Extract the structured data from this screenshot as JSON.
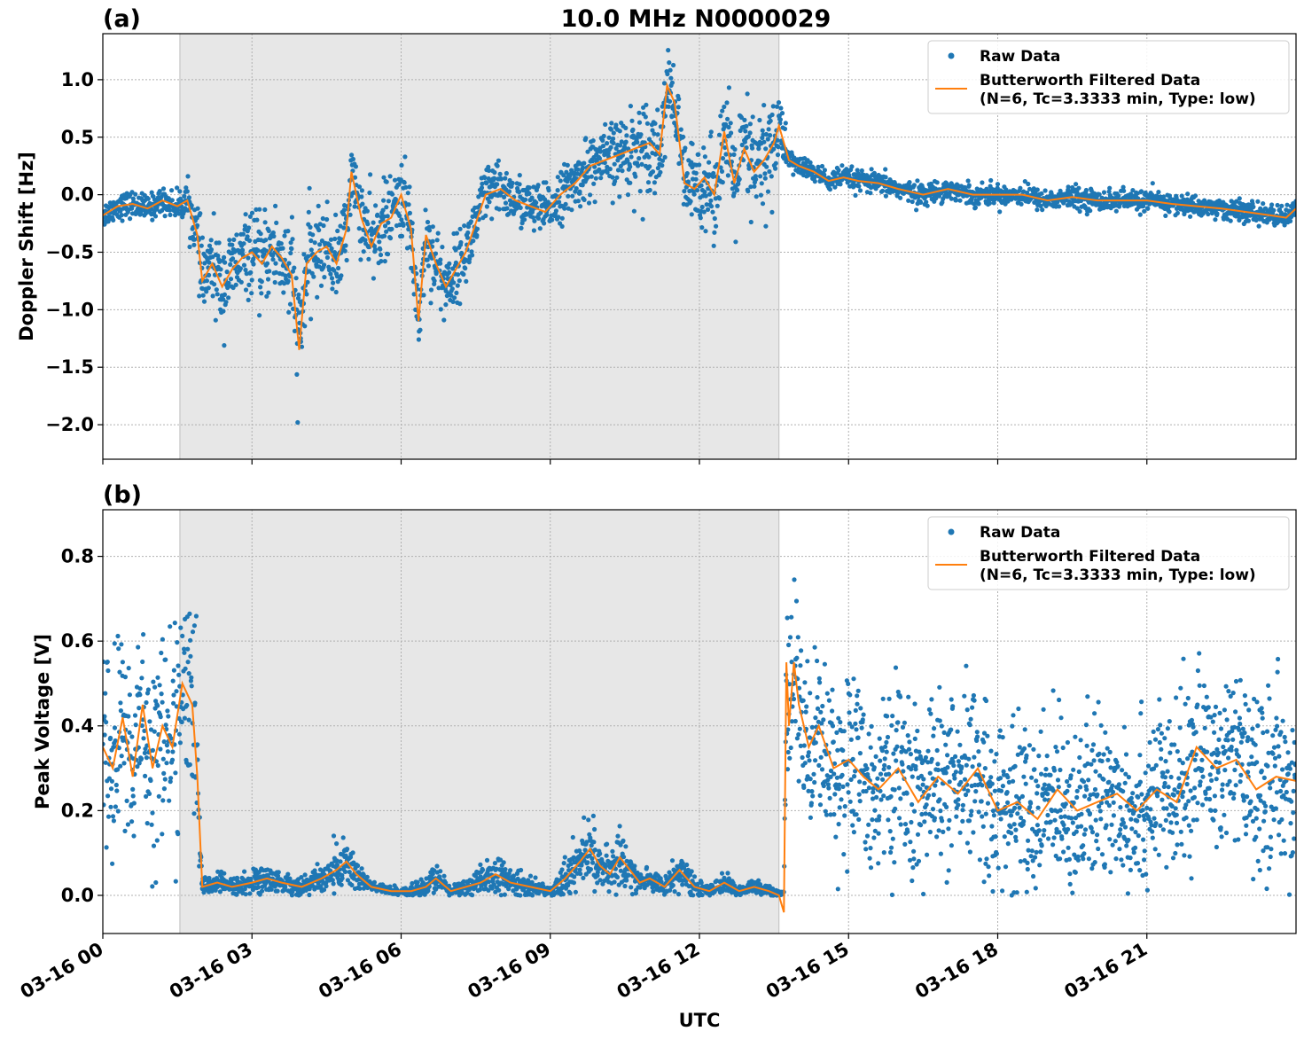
{
  "figure": {
    "title": "10.0 MHz N0000029",
    "xlabel": "UTC"
  },
  "chart_data": [
    {
      "type": "scatter",
      "panel_label": "(a)",
      "ylabel": "Doppler Shift [Hz]",
      "xlim_hours": [
        0,
        24
      ],
      "ylim": [
        -2.3,
        1.4
      ],
      "yticks": [
        1.0,
        0.5,
        0.0,
        -0.5,
        -1.0,
        -1.5,
        -2.0
      ],
      "ytick_labels": [
        "1.0",
        "0.5",
        "0.0",
        "−0.5",
        "−1.0",
        "−1.5",
        "−2.0"
      ],
      "xtick_labels": [
        "03-16 00",
        "03-16 03",
        "03-16 06",
        "03-16 09",
        "03-16 12",
        "03-16 15",
        "03-16 18",
        "03-16 21"
      ],
      "xtick_hours": [
        0,
        3,
        6,
        9,
        12,
        15,
        18,
        21
      ],
      "shaded_span_hours": [
        1.55,
        13.6
      ],
      "grid": true,
      "legend_position": "top-right",
      "legend": [
        {
          "label": "Raw Data",
          "kind": "marker",
          "color": "#1f77b4"
        },
        {
          "label": "Butterworth Filtered Data",
          "label2": "(N=6, Tc=3.3333 min, Type: low)",
          "kind": "line",
          "color": "#ff7f0e"
        }
      ],
      "series": [
        {
          "name": "Butterworth Filtered Data",
          "color": "#ff7f0e",
          "x_hours": [
            0,
            0.3,
            0.6,
            0.9,
            1.2,
            1.5,
            1.7,
            1.9,
            2.0,
            2.2,
            2.4,
            2.6,
            2.8,
            3.0,
            3.2,
            3.4,
            3.6,
            3.8,
            3.95,
            4.1,
            4.3,
            4.5,
            4.7,
            4.9,
            5.0,
            5.2,
            5.4,
            5.6,
            5.8,
            6.0,
            6.2,
            6.35,
            6.5,
            6.7,
            6.9,
            7.1,
            7.3,
            7.5,
            7.7,
            8.0,
            8.3,
            8.6,
            8.9,
            9.2,
            9.5,
            9.8,
            10.1,
            10.4,
            10.7,
            11.0,
            11.2,
            11.35,
            11.5,
            11.7,
            11.9,
            12.1,
            12.3,
            12.5,
            12.7,
            12.9,
            13.1,
            13.3,
            13.5,
            13.6,
            13.8,
            14.0,
            14.3,
            14.6,
            14.9,
            15.2,
            15.6,
            16.0,
            16.5,
            17.0,
            17.5,
            18.0,
            18.5,
            19.0,
            19.5,
            20.0,
            20.5,
            21.0,
            21.5,
            22.0,
            22.5,
            23.0,
            23.5,
            23.8,
            24.0
          ],
          "y": [
            -0.18,
            -0.1,
            -0.08,
            -0.12,
            -0.05,
            -0.1,
            -0.05,
            -0.35,
            -0.75,
            -0.6,
            -0.8,
            -0.65,
            -0.55,
            -0.5,
            -0.6,
            -0.45,
            -0.55,
            -0.7,
            -1.35,
            -0.6,
            -0.5,
            -0.45,
            -0.6,
            -0.3,
            0.2,
            -0.2,
            -0.45,
            -0.25,
            -0.2,
            0.0,
            -0.3,
            -1.1,
            -0.35,
            -0.6,
            -0.8,
            -0.65,
            -0.5,
            -0.25,
            0.0,
            0.05,
            -0.05,
            -0.1,
            -0.15,
            0.0,
            0.1,
            0.25,
            0.3,
            0.35,
            0.4,
            0.45,
            0.35,
            0.95,
            0.8,
            0.1,
            0.05,
            0.15,
            0.0,
            0.55,
            0.1,
            0.4,
            0.2,
            0.3,
            0.45,
            0.6,
            0.3,
            0.25,
            0.2,
            0.12,
            0.15,
            0.12,
            0.1,
            0.05,
            0.0,
            0.05,
            0.0,
            0.0,
            0.0,
            -0.05,
            -0.02,
            -0.05,
            -0.05,
            -0.05,
            -0.08,
            -0.1,
            -0.12,
            -0.15,
            -0.18,
            -0.2,
            -0.12
          ],
          "spread": [
            0.1,
            0.1,
            0.1,
            0.1,
            0.1,
            0.1,
            0.15,
            0.25,
            0.3,
            0.3,
            0.35,
            0.3,
            0.3,
            0.3,
            0.35,
            0.35,
            0.4,
            0.45,
            0.5,
            0.4,
            0.3,
            0.3,
            0.3,
            0.3,
            0.2,
            0.3,
            0.35,
            0.3,
            0.3,
            0.3,
            0.35,
            0.35,
            0.3,
            0.3,
            0.3,
            0.25,
            0.25,
            0.25,
            0.25,
            0.2,
            0.2,
            0.2,
            0.2,
            0.2,
            0.2,
            0.25,
            0.25,
            0.3,
            0.35,
            0.35,
            0.35,
            0.25,
            0.3,
            0.35,
            0.35,
            0.35,
            0.35,
            0.4,
            0.4,
            0.45,
            0.45,
            0.45,
            0.45,
            0.3,
            0.1,
            0.08,
            0.08,
            0.08,
            0.08,
            0.08,
            0.08,
            0.08,
            0.08,
            0.08,
            0.08,
            0.08,
            0.08,
            0.08,
            0.08,
            0.08,
            0.08,
            0.08,
            0.08,
            0.08,
            0.08,
            0.08,
            0.08,
            0.08,
            0.08
          ]
        }
      ]
    },
    {
      "type": "scatter",
      "panel_label": "(b)",
      "ylabel": "Peak Voltage [V]",
      "xlim_hours": [
        0,
        24
      ],
      "ylim": [
        -0.09,
        0.91
      ],
      "yticks": [
        0.8,
        0.6,
        0.4,
        0.2,
        0.0
      ],
      "ytick_labels": [
        "0.8",
        "0.6",
        "0.4",
        "0.2",
        "0.0"
      ],
      "xtick_labels": [
        "03-16 00",
        "03-16 03",
        "03-16 06",
        "03-16 09",
        "03-16 12",
        "03-16 15",
        "03-16 18",
        "03-16 21"
      ],
      "xtick_hours": [
        0,
        3,
        6,
        9,
        12,
        15,
        18,
        21
      ],
      "shaded_span_hours": [
        1.55,
        13.6
      ],
      "grid": true,
      "legend_position": "top-right",
      "legend": [
        {
          "label": "Raw Data",
          "kind": "marker",
          "color": "#1f77b4"
        },
        {
          "label": "Butterworth Filtered Data",
          "label2": "(N=6, Tc=3.3333 min, Type: low)",
          "kind": "line",
          "color": "#ff7f0e"
        }
      ],
      "series": [
        {
          "name": "Butterworth Filtered Data",
          "color": "#ff7f0e",
          "x_hours": [
            0,
            0.2,
            0.4,
            0.6,
            0.8,
            1.0,
            1.2,
            1.4,
            1.6,
            1.8,
            1.9,
            2.0,
            2.3,
            2.6,
            3.0,
            3.3,
            3.6,
            4.0,
            4.4,
            4.7,
            4.9,
            5.1,
            5.4,
            5.8,
            6.2,
            6.5,
            6.7,
            7.0,
            7.3,
            7.6,
            7.9,
            8.2,
            8.6,
            9.0,
            9.3,
            9.6,
            9.8,
            10.0,
            10.2,
            10.4,
            10.6,
            10.8,
            11.0,
            11.3,
            11.6,
            11.9,
            12.2,
            12.5,
            12.8,
            13.1,
            13.4,
            13.6,
            13.7,
            13.75,
            13.8,
            13.9,
            14.0,
            14.2,
            14.4,
            14.7,
            15.0,
            15.3,
            15.6,
            16.0,
            16.4,
            16.8,
            17.2,
            17.6,
            18.0,
            18.4,
            18.8,
            19.2,
            19.6,
            20.0,
            20.4,
            20.8,
            21.2,
            21.6,
            22.0,
            22.4,
            22.8,
            23.2,
            23.6,
            24.0
          ],
          "y": [
            0.35,
            0.3,
            0.42,
            0.28,
            0.45,
            0.3,
            0.4,
            0.35,
            0.5,
            0.45,
            0.28,
            0.02,
            0.03,
            0.02,
            0.03,
            0.04,
            0.03,
            0.02,
            0.04,
            0.06,
            0.08,
            0.05,
            0.02,
            0.01,
            0.01,
            0.02,
            0.04,
            0.01,
            0.02,
            0.03,
            0.05,
            0.03,
            0.02,
            0.01,
            0.04,
            0.08,
            0.11,
            0.07,
            0.05,
            0.09,
            0.06,
            0.03,
            0.04,
            0.02,
            0.06,
            0.02,
            0.01,
            0.03,
            0.01,
            0.02,
            0.01,
            0.0,
            -0.04,
            0.55,
            0.4,
            0.55,
            0.45,
            0.35,
            0.4,
            0.3,
            0.32,
            0.28,
            0.25,
            0.3,
            0.22,
            0.28,
            0.24,
            0.3,
            0.2,
            0.22,
            0.18,
            0.25,
            0.2,
            0.22,
            0.24,
            0.2,
            0.25,
            0.22,
            0.35,
            0.3,
            0.32,
            0.25,
            0.28,
            0.27
          ],
          "spread": [
            0.22,
            0.22,
            0.22,
            0.22,
            0.22,
            0.22,
            0.22,
            0.22,
            0.22,
            0.22,
            0.15,
            0.02,
            0.02,
            0.02,
            0.03,
            0.03,
            0.02,
            0.02,
            0.03,
            0.05,
            0.06,
            0.04,
            0.01,
            0.01,
            0.01,
            0.02,
            0.03,
            0.01,
            0.02,
            0.03,
            0.04,
            0.03,
            0.02,
            0.01,
            0.04,
            0.06,
            0.07,
            0.05,
            0.04,
            0.06,
            0.05,
            0.02,
            0.03,
            0.02,
            0.04,
            0.02,
            0.01,
            0.02,
            0.01,
            0.02,
            0.01,
            0.01,
            0.02,
            0.2,
            0.22,
            0.2,
            0.18,
            0.16,
            0.17,
            0.18,
            0.18,
            0.18,
            0.18,
            0.18,
            0.18,
            0.18,
            0.18,
            0.18,
            0.18,
            0.18,
            0.18,
            0.18,
            0.18,
            0.18,
            0.18,
            0.18,
            0.18,
            0.18,
            0.18,
            0.18,
            0.18,
            0.18,
            0.18,
            0.18
          ]
        }
      ]
    }
  ]
}
